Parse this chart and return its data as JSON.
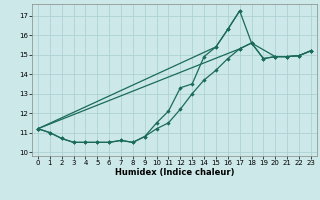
{
  "xlabel": "Humidex (Indice chaleur)",
  "bg_color": "#cce8e8",
  "grid_color": "#aacece",
  "line_color": "#1a6b5a",
  "xlim": [
    -0.5,
    23.5
  ],
  "ylim": [
    9.8,
    17.6
  ],
  "yticks": [
    10,
    11,
    12,
    13,
    14,
    15,
    16,
    17
  ],
  "xticks": [
    0,
    1,
    2,
    3,
    4,
    5,
    6,
    7,
    8,
    9,
    10,
    11,
    12,
    13,
    14,
    15,
    16,
    17,
    18,
    19,
    20,
    21,
    22,
    23
  ],
  "curve_zigzag_x": [
    0,
    1,
    2,
    3,
    4,
    5,
    6,
    7,
    8,
    9,
    10,
    11,
    12,
    13,
    14,
    15,
    16,
    17
  ],
  "curve_zigzag_y": [
    11.2,
    11.0,
    10.7,
    10.5,
    10.5,
    10.5,
    10.5,
    10.6,
    10.5,
    10.8,
    11.5,
    12.1,
    13.3,
    13.5,
    14.9,
    15.4,
    16.3,
    17.25
  ],
  "curve_peak_x": [
    0,
    15,
    16,
    17,
    18,
    20,
    21,
    22,
    23
  ],
  "curve_peak_y": [
    11.2,
    15.4,
    16.3,
    17.25,
    15.6,
    14.9,
    14.9,
    14.95,
    15.2
  ],
  "curve_linear_x": [
    0,
    17,
    18,
    19,
    20,
    21,
    22,
    23
  ],
  "curve_linear_y": [
    11.2,
    15.3,
    15.6,
    14.8,
    14.9,
    14.9,
    14.95,
    15.2
  ],
  "curve_flat_x": [
    0,
    1,
    2,
    3,
    4,
    5,
    6,
    7,
    8,
    9,
    10,
    11,
    12,
    13,
    14,
    15,
    16,
    17,
    18,
    19,
    20,
    21,
    22,
    23
  ],
  "curve_flat_y": [
    11.2,
    11.0,
    10.7,
    10.5,
    10.5,
    10.5,
    10.5,
    10.6,
    10.5,
    10.8,
    11.2,
    11.5,
    12.2,
    13.0,
    13.7,
    14.2,
    14.8,
    15.3,
    15.6,
    14.8,
    14.9,
    14.9,
    14.95,
    15.2
  ]
}
